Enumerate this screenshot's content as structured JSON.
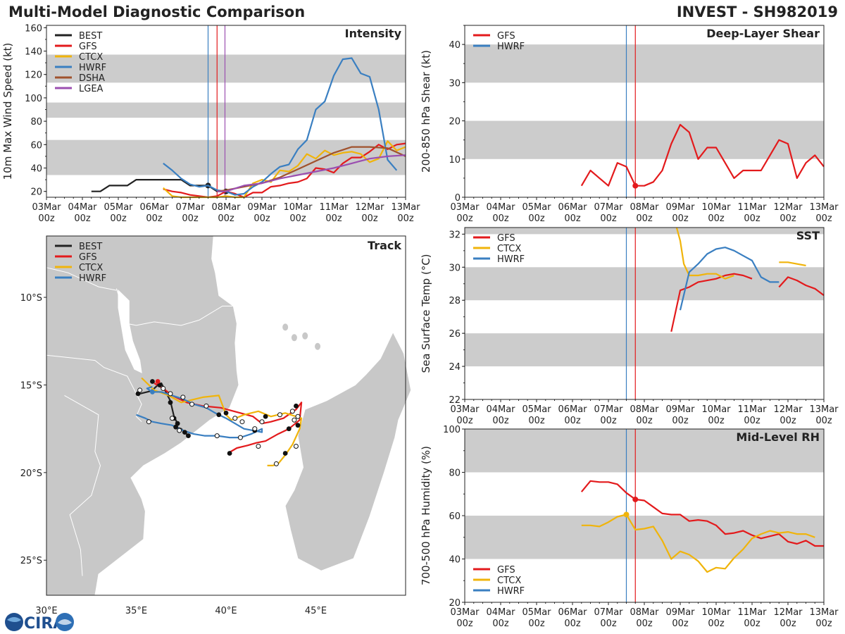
{
  "header": {
    "title": "Multi-Model Diagnostic Comparison",
    "storm": "INVEST - SH982019"
  },
  "colors": {
    "BEST": "#222222",
    "GFS": "#e31a1c",
    "CTCX": "#f0b40b",
    "HWRF": "#3a7fc1",
    "DSHA": "#a0522d",
    "LGEA": "#9b4fb0",
    "band": "#cccccc",
    "land": "#c8c8c8"
  },
  "time_axis": {
    "labels": [
      "03Mar",
      "04Mar",
      "05Mar",
      "06Mar",
      "07Mar",
      "08Mar",
      "09Mar",
      "10Mar",
      "11Mar",
      "12Mar",
      "13Mar"
    ],
    "sublabel": "00z",
    "range_days": [
      0,
      10
    ]
  },
  "vlines": {
    "HWRF_init_day": 4.5,
    "GFS_init_day": 4.75,
    "LGEA_init_day": 4.97
  },
  "logo_text": "CIRA",
  "chart_data": [
    {
      "id": "intensity",
      "type": "line",
      "title": "Intensity",
      "ylabel": "10m Max Wind Speed (kt)",
      "ylim": [
        15,
        162
      ],
      "yticks": [
        20,
        40,
        60,
        80,
        100,
        120,
        140,
        160
      ],
      "bands": [
        [
          34,
          64
        ],
        [
          83,
          96
        ],
        [
          113,
          137
        ]
      ],
      "legend": [
        "BEST",
        "GFS",
        "CTCX",
        "HWRF",
        "DSHA",
        "LGEA"
      ],
      "series": [
        {
          "name": "BEST",
          "x": [
            1.25,
            1.5,
            1.75,
            2.0,
            2.25,
            2.5,
            2.75,
            3.0,
            3.25,
            3.5,
            3.75,
            4.0,
            4.25,
            4.5,
            4.75,
            5.0
          ],
          "y": [
            20,
            20,
            25,
            25,
            25,
            30,
            30,
            30,
            30,
            30,
            30,
            25,
            25,
            25,
            20,
            20
          ],
          "markers_at": [
            4.5,
            5.0
          ]
        },
        {
          "name": "GFS",
          "x": [
            3.25,
            3.5,
            3.75,
            4.0,
            4.25,
            4.5,
            4.75,
            5.0,
            5.25,
            5.5,
            5.75,
            6.0,
            6.25,
            6.5,
            6.75,
            7.0,
            7.25,
            7.5,
            7.75,
            8.0,
            8.25,
            8.5,
            8.75,
            9.0,
            9.25,
            9.5,
            9.75,
            10.0
          ],
          "y": [
            22,
            20,
            19,
            17,
            16,
            15,
            16,
            20,
            18,
            15,
            19,
            19,
            24,
            25,
            27,
            28,
            31,
            40,
            39,
            36,
            44,
            49,
            49,
            54,
            60,
            56,
            60,
            61
          ]
        },
        {
          "name": "CTCX",
          "x": [
            3.25,
            3.5,
            3.75,
            4.0,
            4.25,
            4.5,
            4.75,
            5.0,
            5.25,
            5.5,
            5.75,
            6.0,
            6.25,
            6.5,
            6.75,
            7.0,
            7.25,
            7.5,
            7.75,
            8.0,
            8.25,
            8.5,
            8.75,
            9.0,
            9.25,
            9.5,
            9.75,
            10.0
          ],
          "y": [
            23,
            16,
            15,
            14,
            13,
            12,
            14,
            16,
            14,
            15,
            27,
            30,
            28,
            38,
            37,
            42,
            52,
            48,
            55,
            51,
            53,
            54,
            52,
            45,
            48,
            63,
            55,
            58
          ]
        },
        {
          "name": "HWRF",
          "x": [
            3.25,
            3.5,
            3.75,
            4.0,
            4.25,
            4.5,
            4.75,
            5.0,
            5.25,
            5.5,
            5.75,
            6.0,
            6.25,
            6.5,
            6.75,
            7.0,
            7.25,
            7.5,
            7.75,
            8.0,
            8.25,
            8.5,
            8.75,
            9.0,
            9.25,
            9.5,
            9.75
          ],
          "y": [
            44,
            38,
            31,
            26,
            24,
            25,
            21,
            20,
            17,
            18,
            24,
            28,
            35,
            41,
            43,
            56,
            64,
            90,
            97,
            119,
            133,
            134,
            121,
            118,
            90,
            47,
            38
          ]
        },
        {
          "name": "DSHA",
          "x": [
            4.75,
            5.0,
            5.5,
            6.0,
            6.5,
            7.0,
            7.5,
            8.0,
            8.5,
            9.0,
            9.5,
            10.0
          ],
          "y": [
            20,
            21,
            24,
            27,
            32,
            39,
            46,
            53,
            58,
            58,
            57,
            50
          ]
        },
        {
          "name": "LGEA",
          "x": [
            4.75,
            5.0,
            5.5,
            6.0,
            6.5,
            7.0,
            7.5,
            8.0,
            8.5,
            9.0,
            9.5,
            10.0
          ],
          "y": [
            20,
            20,
            25,
            27,
            31,
            34,
            37,
            40,
            44,
            48,
            50,
            51
          ]
        }
      ]
    },
    {
      "id": "shear",
      "type": "line",
      "title": "Deep-Layer Shear",
      "ylabel": "200-850 hPa Shear (kt)",
      "ylim": [
        0,
        45
      ],
      "yticks": [
        0,
        10,
        20,
        30,
        40
      ],
      "bands": [
        [
          10,
          20
        ],
        [
          30,
          40
        ]
      ],
      "legend": [
        "GFS",
        "HWRF"
      ],
      "series": [
        {
          "name": "GFS",
          "x": [
            3.25,
            3.5,
            3.75,
            4.0,
            4.25,
            4.5,
            4.75,
            5.0,
            5.25,
            5.5,
            5.75,
            6.0,
            6.25,
            6.5,
            6.75,
            7.0,
            7.25,
            7.5,
            7.75,
            8.0,
            8.25,
            8.5,
            8.75,
            9.0,
            9.25,
            9.5,
            9.75,
            10.0
          ],
          "y": [
            3,
            7,
            5,
            3,
            9,
            8,
            3,
            3,
            4,
            7,
            14,
            19,
            17,
            10,
            13,
            13,
            9,
            5,
            7,
            7,
            7,
            11,
            15,
            14,
            5,
            9,
            11,
            8
          ],
          "markers_at": [
            4.75
          ]
        }
      ]
    },
    {
      "id": "sst",
      "type": "line",
      "title": "SST",
      "ylabel": "Sea Surface Temp (°C)",
      "ylim": [
        22,
        32.4
      ],
      "yticks": [
        22,
        24,
        26,
        28,
        30,
        32
      ],
      "bands": [
        [
          24,
          26
        ],
        [
          28,
          30
        ],
        [
          32,
          32.4
        ]
      ],
      "legend": [
        "GFS",
        "CTCX",
        "HWRF"
      ],
      "series": [
        {
          "name": "GFS",
          "x": [
            5.75,
            6.0,
            6.25,
            6.5,
            6.75,
            7.0,
            7.25,
            7.5,
            7.75,
            8.0,
            8.25,
            8.5,
            8.75,
            9.0,
            9.25,
            9.5,
            9.75,
            10.0
          ],
          "y": [
            26.1,
            28.6,
            28.8,
            29.1,
            29.2,
            29.3,
            29.5,
            29.6,
            29.5,
            29.3,
            null,
            null,
            28.8,
            29.4,
            29.2,
            28.9,
            28.7,
            28.3
          ]
        },
        {
          "name": "CTCX",
          "x": [
            5.9,
            6.0,
            6.1,
            6.25,
            6.5,
            6.75,
            7.0,
            7.25,
            7.5,
            8.5,
            8.75,
            9.0,
            9.5
          ],
          "y": [
            32.4,
            31.6,
            30.2,
            29.5,
            29.5,
            29.6,
            29.6,
            29.3,
            29.5,
            null,
            30.3,
            30.3,
            30.1
          ]
        },
        {
          "name": "HWRF",
          "x": [
            6.0,
            6.25,
            6.5,
            6.75,
            7.0,
            7.25,
            7.5,
            7.75,
            8.0,
            8.25,
            8.5,
            8.75
          ],
          "y": [
            27.4,
            29.7,
            30.2,
            30.8,
            31.1,
            31.2,
            31.0,
            30.7,
            30.4,
            29.4,
            29.1,
            29.1
          ]
        }
      ]
    },
    {
      "id": "rh",
      "type": "line",
      "title": "Mid-Level RH",
      "ylabel": "700-500 hPa Humidity (%)",
      "ylim": [
        20,
        100
      ],
      "yticks": [
        20,
        40,
        60,
        80,
        100
      ],
      "bands": [
        [
          40,
          60
        ],
        [
          80,
          100
        ]
      ],
      "legend": [
        "GFS",
        "CTCX",
        "HWRF"
      ],
      "series": [
        {
          "name": "GFS",
          "x": [
            3.25,
            3.5,
            3.75,
            4.0,
            4.25,
            4.5,
            4.75,
            5.0,
            5.25,
            5.5,
            5.75,
            6.0,
            6.25,
            6.5,
            6.75,
            7.0,
            7.25,
            7.5,
            7.75,
            8.0,
            8.25,
            8.5,
            8.75,
            9.0,
            9.25,
            9.5,
            9.75,
            10.0
          ],
          "y": [
            71,
            76,
            75.5,
            75.5,
            74.5,
            70.5,
            67.5,
            67,
            64,
            61,
            60.5,
            60.5,
            57.5,
            58,
            57.5,
            55.5,
            51.5,
            52,
            53,
            51,
            49.5,
            50.5,
            51.5,
            48,
            47,
            48.5,
            46,
            46
          ],
          "markers_at": [
            4.75
          ]
        },
        {
          "name": "CTCX",
          "x": [
            3.25,
            3.5,
            3.75,
            4.0,
            4.25,
            4.5,
            4.75,
            5.0,
            5.25,
            5.5,
            5.75,
            6.0,
            6.25,
            6.5,
            6.75,
            7.0,
            7.25,
            7.5,
            7.75,
            8.0,
            8.25,
            8.5,
            8.75,
            9.0,
            9.25,
            9.5,
            9.75
          ],
          "y": [
            55.5,
            55.5,
            55,
            57,
            59.5,
            60.5,
            53.5,
            54,
            55,
            48.5,
            40,
            43.5,
            42,
            39,
            34,
            36,
            35.5,
            40.5,
            44.5,
            49.5,
            51.5,
            53,
            52,
            52.5,
            51.5,
            51.5,
            50
          ],
          "markers_at": [
            4.5
          ]
        }
      ]
    },
    {
      "id": "track",
      "type": "scatter",
      "title": "Track",
      "xlim": [
        30,
        50
      ],
      "ylim": [
        -27,
        -6.5
      ],
      "xtick_labels": [
        {
          "v": 30,
          "label": "30°E"
        },
        {
          "v": 35,
          "label": "35°E"
        },
        {
          "v": 40,
          "label": "40°E"
        },
        {
          "v": 45,
          "label": "45°E"
        }
      ],
      "ytick_labels": [
        {
          "v": -10,
          "label": "10°S"
        },
        {
          "v": -15,
          "label": "15°S"
        },
        {
          "v": -20,
          "label": "20°S"
        },
        {
          "v": -25,
          "label": "25°S"
        }
      ],
      "legend": [
        "BEST",
        "GFS",
        "CTCX",
        "HWRF"
      ],
      "series": [
        {
          "name": "BEST",
          "lon": [
            35.2,
            35.4,
            35.6,
            35.8,
            36.0,
            36.2,
            36.4,
            36.9,
            37.1,
            37.3,
            37.2,
            37.5,
            37.7,
            37.9
          ],
          "lat": [
            -15.5,
            -15.45,
            -15.4,
            -15.35,
            -15.2,
            -15.0,
            -14.9,
            -15.9,
            -16.8,
            -17.2,
            -17.4,
            -17.5,
            -17.7,
            -17.9
          ]
        },
        {
          "name": "GFS",
          "lon": [
            36.0,
            36.5,
            37.0,
            37.8,
            38.7,
            39.7,
            40.8,
            41.5,
            42.0,
            42.5,
            43.2,
            43.9,
            44.2,
            44.1,
            43.5,
            42.9,
            42.2,
            41.7,
            41.2,
            40.6,
            40.1
          ],
          "lat": [
            -14.9,
            -15.2,
            -15.6,
            -16.0,
            -16.2,
            -16.3,
            -16.6,
            -16.8,
            -17.2,
            -17.1,
            -16.9,
            -16.4,
            -16.0,
            -17.0,
            -17.5,
            -17.8,
            -18.2,
            -18.3,
            -18.45,
            -18.6,
            -18.9
          ]
        },
        {
          "name": "CTCX",
          "lon": [
            35.3,
            35.6,
            36.0,
            36.8,
            37.5,
            38.7,
            39.6,
            40.0,
            40.3,
            41.0,
            41.8,
            42.5,
            43.3,
            44.2,
            44.1,
            43.7,
            43.3,
            42.9,
            42.6,
            42.3
          ],
          "lat": [
            -14.6,
            -14.9,
            -15.3,
            -15.6,
            -16.0,
            -15.7,
            -15.6,
            -16.7,
            -17.0,
            -16.7,
            -16.5,
            -16.8,
            -16.6,
            -16.9,
            -17.5,
            -18.4,
            -19.0,
            -19.5,
            -19.6,
            -19.6
          ]
        },
        {
          "name": "HWRF",
          "lon": [
            35.9,
            35.6,
            35.9,
            36.4,
            37.0,
            37.6,
            38.2,
            38.9,
            39.4,
            40.0,
            40.5,
            41.0,
            41.5,
            42.0,
            42.0,
            41.4,
            40.8,
            40.2,
            39.5,
            38.8,
            38.2,
            37.6,
            37.0,
            36.4,
            35.9,
            35.5,
            35.0
          ],
          "lat": [
            -15.1,
            -15.2,
            -15.4,
            -15.4,
            -15.6,
            -15.8,
            -16.1,
            -16.3,
            -16.6,
            -16.9,
            -17.2,
            -17.5,
            -17.6,
            -17.7,
            -17.5,
            -17.8,
            -18.0,
            -18.0,
            -17.9,
            -17.9,
            -17.8,
            -17.6,
            -17.3,
            -17.2,
            -17.1,
            -16.9,
            -16.7
          ]
        }
      ],
      "filled_points": {
        "BEST": [
          [
            35.9,
            -14.8
          ],
          [
            36.3,
            -15.0
          ],
          [
            35.1,
            -15.5
          ],
          [
            36.9,
            -16.0
          ],
          [
            37.1,
            -16.9
          ],
          [
            37.3,
            -17.2
          ],
          [
            37.2,
            -17.4
          ],
          [
            37.7,
            -17.7
          ],
          [
            37.9,
            -17.9
          ],
          [
            39.6,
            -16.7
          ],
          [
            40.0,
            -16.6
          ],
          [
            41.6,
            -17.6
          ],
          [
            42.2,
            -16.8
          ],
          [
            43.9,
            -16.2
          ],
          [
            44.0,
            -17.3
          ],
          [
            43.5,
            -17.5
          ],
          [
            43.3,
            -18.9
          ],
          [
            40.2,
            -18.9
          ]
        ],
        "GFS": [
          [
            36.2,
            -14.8
          ]
        ],
        "HWRF": [
          [
            35.9,
            -15.4
          ]
        ]
      },
      "open_points": [
        [
          36.5,
          -15.2
        ],
        [
          36.9,
          -15.5
        ],
        [
          37.6,
          -15.7
        ],
        [
          38.1,
          -16.1
        ],
        [
          38.9,
          -16.2
        ],
        [
          37.0,
          -16.9
        ],
        [
          37.4,
          -17.6
        ],
        [
          39.5,
          -17.9
        ],
        [
          40.8,
          -18.0
        ],
        [
          41.6,
          -17.5
        ],
        [
          40.5,
          -16.9
        ],
        [
          40.9,
          -17.1
        ],
        [
          42.0,
          -17.1
        ],
        [
          43.0,
          -16.7
        ],
        [
          43.7,
          -16.5
        ],
        [
          44.0,
          -16.8
        ],
        [
          43.8,
          -17.0
        ],
        [
          43.9,
          -18.5
        ],
        [
          42.8,
          -19.5
        ],
        [
          41.8,
          -18.5
        ],
        [
          35.7,
          -17.1
        ],
        [
          35.2,
          -15.3
        ]
      ]
    }
  ]
}
